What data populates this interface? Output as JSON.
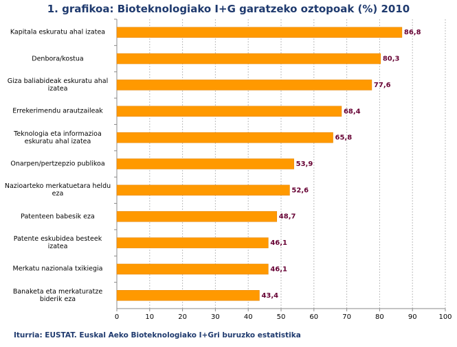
{
  "chart_data": {
    "type": "bar",
    "orientation": "horizontal",
    "title": "1. grafikoa: Bioteknologiako I+G garatzeko oztopoak (%) 2010",
    "source": "Iturria: EUSTAT. Euskal Aeko Bioteknologiako I+Gri buruzko estatistika",
    "categories": [
      "Kapitala eskuratu ahal izatea",
      "Denbora/kostua",
      "Giza baliabideak eskuratu ahal izatea",
      "Errekerimendu arautzaileak",
      "Teknologia eta informazioa eskuratu ahal izatea",
      "Onarpen/pertzepzio publikoa",
      "Nazioarteko merkatuetara heldu eza",
      "Patenteen babesik eza",
      "Patente eskubidea besteek izatea",
      "Merkatu nazionala txikiegia",
      "Banaketa eta merkaturatze biderik eza"
    ],
    "values": [
      86.8,
      80.3,
      77.6,
      68.4,
      65.8,
      53.9,
      52.6,
      48.7,
      46.1,
      46.1,
      43.4
    ],
    "value_labels": [
      "86,8",
      "80,3",
      "77,6",
      "68,4",
      "65,8",
      "53,9",
      "52,6",
      "48,7",
      "46,1",
      "46,1",
      "43,4"
    ],
    "color": "#ff9900",
    "xlim": [
      0,
      100
    ],
    "xticks": [
      0,
      10,
      20,
      30,
      40,
      50,
      60,
      70,
      80,
      90,
      100
    ],
    "grid": true
  }
}
